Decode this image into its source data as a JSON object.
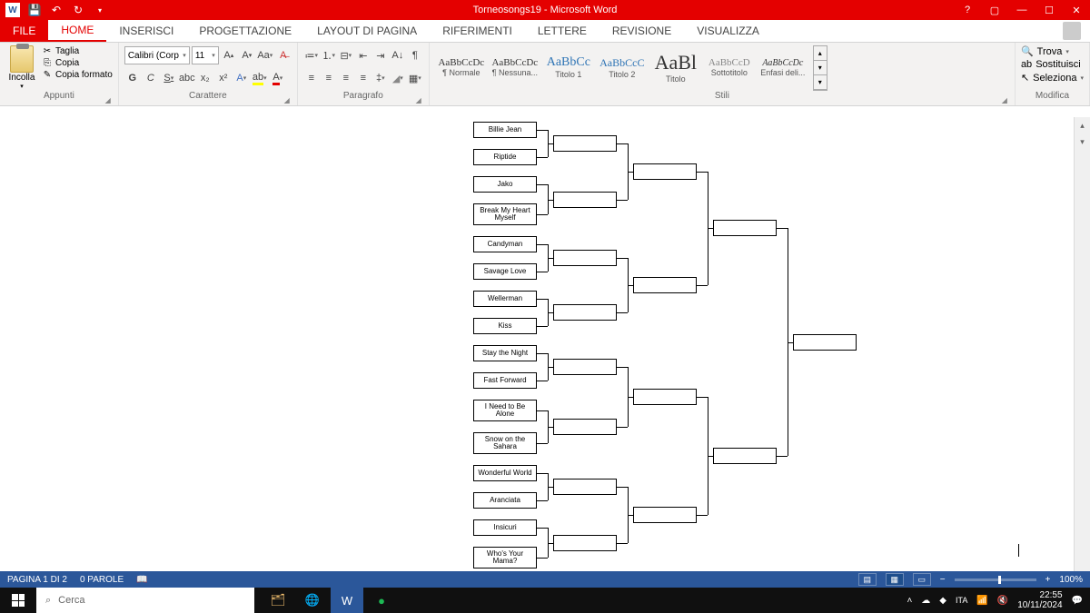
{
  "title": "Torneosongs19 -  Microsoft Word",
  "tabs": {
    "file": "FILE",
    "home": "HOME",
    "insert": "INSERISCI",
    "design": "PROGETTAZIONE",
    "layout": "LAYOUT DI PAGINA",
    "references": "RIFERIMENTI",
    "mailings": "LETTERE",
    "review": "REVISIONE",
    "view": "VISUALIZZA"
  },
  "clipboard": {
    "paste": "Incolla",
    "cut": "Taglia",
    "copy": "Copia",
    "formatPainter": "Copia formato",
    "group": "Appunti"
  },
  "font": {
    "name": "Calibri (Corp",
    "size": "11",
    "group": "Carattere"
  },
  "paragraph": {
    "group": "Paragrafo"
  },
  "styles": {
    "group": "Stili",
    "items": [
      {
        "prev": "AaBbCcDc",
        "size": "11",
        "label": "¶ Normale"
      },
      {
        "prev": "AaBbCcDc",
        "size": "11",
        "label": "¶ Nessuna..."
      },
      {
        "prev": "AaBbCc",
        "size": "14",
        "color": "#2e74b5",
        "label": "Titolo 1"
      },
      {
        "prev": "AaBbCcC",
        "size": "12",
        "color": "#2e74b5",
        "label": "Titolo 2"
      },
      {
        "prev": "AaBl",
        "size": "22",
        "label": "Titolo"
      },
      {
        "prev": "AaBbCcD",
        "size": "11",
        "color": "#888",
        "label": "Sottotitolo"
      },
      {
        "prev": "AaBbCcDc",
        "size": "10",
        "style": "italic",
        "label": "Enfasi deli..."
      }
    ]
  },
  "editing": {
    "find": "Trova",
    "replace": "Sostituisci",
    "select": "Seleziona",
    "group": "Modifica"
  },
  "bracket": {
    "round1": [
      "Billie Jean",
      "Riptide",
      "Jako",
      "Break My Heart Myself",
      "Candyman",
      "Savage Love",
      "Wellerman",
      "Kiss",
      "Stay the Night",
      "Fast Forward",
      "I Need to Be Alone",
      "Snow on the Sahara",
      "Wonderful World",
      "Aranciata",
      "Insicuri",
      "Who's Your Mama?"
    ]
  },
  "status": {
    "page": "PAGINA 1 DI 2",
    "words": "0 PAROLE",
    "zoom": "100%"
  },
  "taskbar": {
    "search": "Cerca",
    "time": "22:55",
    "date": "10/11/2024"
  }
}
